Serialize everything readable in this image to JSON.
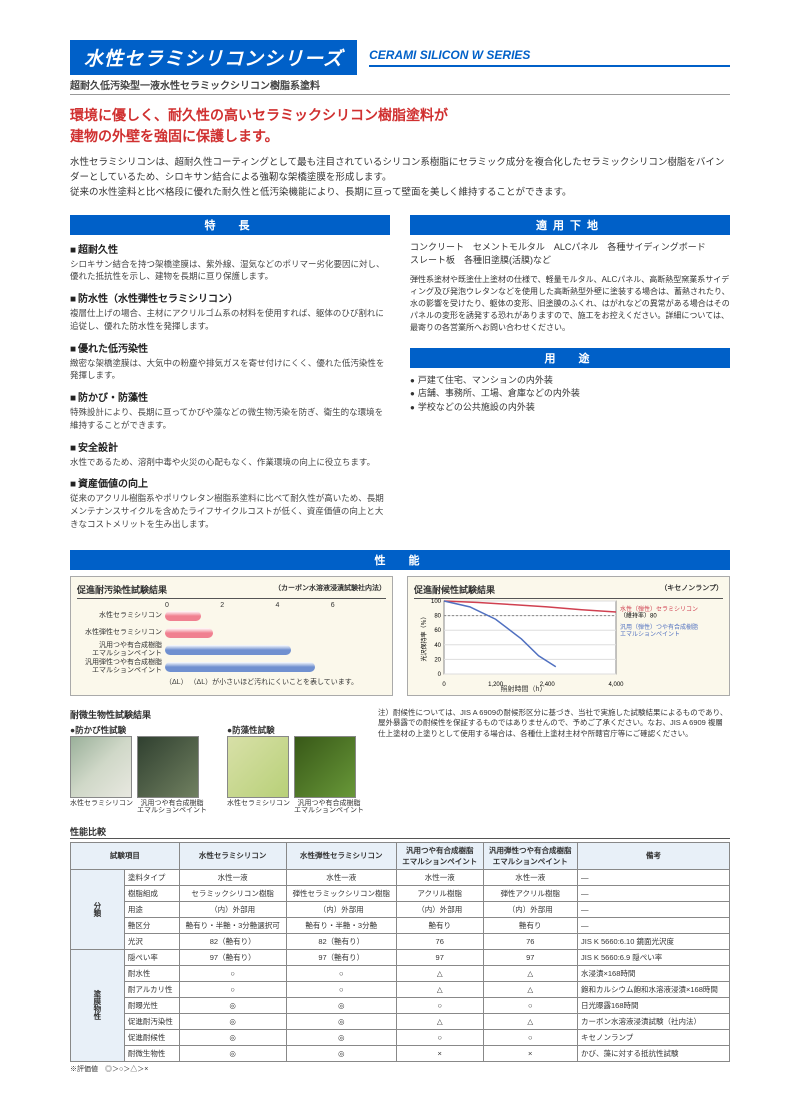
{
  "header": {
    "mainTitle": "水性セラミシリコンシリーズ",
    "engTitle": "CERAMI SILICON W SERIES",
    "subtitle": "超耐久低汚染型一液水性セラミックシリコン樹脂系塗料"
  },
  "headline": {
    "line1": "環境に優しく、耐久性の高いセラミックシリコン樹脂塗料が",
    "line2": "建物の外壁を強固に保護します。"
  },
  "intro": "水性セラミシリコンは、超耐久性コーティングとして最も注目されているシリコン系樹脂にセラミック成分を複合化したセラミックシリコン樹脂をバインダーとしているため、シロキサン結合による強靭な架橋塗膜を形成します。\n従来の水性塗料と比べ格段に優れた耐久性と低汚染機能により、長期に亘って壁面を美しく維持することができます。",
  "sections": {
    "features": "特　長",
    "substrate": "適用下地",
    "uses": "用　途",
    "performance": "性　能"
  },
  "features": [
    {
      "title": "超耐久性",
      "body": "シロキサン結合を持つ架橋塗膜は、紫外線、湿気などのポリマー劣化要因に対し、優れた抵抗性を示し、建物を長期に亘り保護します。"
    },
    {
      "title": "防水性（水性弾性セラミシリコン）",
      "body": "複層仕上げの場合、主材にアクリルゴム系の材料を使用すれば、躯体のひび割れに追従し、優れた防水性を発揮します。"
    },
    {
      "title": "優れた低汚染性",
      "body": "緻密な架橋塗膜は、大気中の粉塵や排気ガスを寄せ付けにくく、優れた低汚染性を発揮します。"
    },
    {
      "title": "防かび・防藻性",
      "body": "特殊設計により、長期に亘ってかびや藻などの微生物汚染を防ぎ、衛生的な環境を維持することができます。"
    },
    {
      "title": "安全設計",
      "body": "水性であるため、溶剤中毒や火災の心配もなく、作業環境の向上に役立ちます。"
    },
    {
      "title": "資産価値の向上",
      "body": "従来のアクリル樹脂系やポリウレタン樹脂系塗料に比べて耐久性が高いため、長期メンテナンスサイクルを含めたライフサイクルコストが低く、資産価値の向上と大きなコストメリットを生み出します。"
    }
  ],
  "substrate": {
    "line1": "コンクリート　セメントモルタル　ALCパネル　各種サイディングボード",
    "line2": "スレート板　各種旧塗膜(活膜)など",
    "note": "弾性系塗材や既塗仕上塗材の仕様で、軽量モルタル、ALCパネル、高断熱型窯業系サイディング及び発泡ウレタンなどを使用した高断熱型外壁に塗装する場合は、蓄熱されたり、水の影響を受けたり、躯体の変形、旧塗膜のふくれ、はがれなどの異常がある場合はそのパネルの変形を誘発する恐れがありますので、施工をお控えください。詳細については、最寄りの各営業所へお問い合わせください。"
  },
  "uses": [
    "戸建て住宅、マンションの内外装",
    "店舗、事務所、工場、倉庫などの内外装",
    "学校などの公共施設の内外装"
  ],
  "charts": {
    "pollution": {
      "title": "促進耐汚染性試験結果",
      "note": "（カーボン水溶液浸漬試験社内法）",
      "xlabel": "（ΔL）",
      "footnote": "（ΔL）が小さいほど汚れにくいことを表しています。",
      "bars": [
        {
          "label": "水性セラミシリコン",
          "value": 1.2,
          "color": "#f08090"
        },
        {
          "label": "水性弾性セラミシリコン",
          "value": 1.6,
          "color": "#f08090"
        },
        {
          "label": "汎用つや有合成樹脂\nエマルションペイント",
          "value": 4.2,
          "color": "#7090d0"
        },
        {
          "label": "汎用弾性つや有合成樹脂\nエマルションペイント",
          "value": 5.0,
          "color": "#7090d0"
        }
      ],
      "xmax": 6,
      "bg": "#fbf8eb"
    },
    "weather": {
      "title": "促進耐候性試験結果",
      "note": "（キセノンランプ）",
      "ylabel": "光沢保持率（％）",
      "xlabel": "照射時間（h）",
      "ymax": 100,
      "xmax": 4000,
      "series": [
        {
          "label": "水性（弾性）セラミシリコン",
          "color": "#d04050",
          "points": [
            [
              0,
              100
            ],
            [
              800,
              98
            ],
            [
              1600,
              95
            ],
            [
              2400,
              92
            ],
            [
              3200,
              88
            ],
            [
              4000,
              85
            ]
          ]
        },
        {
          "label": "汎用（弾性）つや有合成樹脂\nエマルションペイント",
          "color": "#5070c0",
          "points": [
            [
              0,
              100
            ],
            [
              600,
              92
            ],
            [
              1200,
              75
            ],
            [
              1800,
              48
            ],
            [
              2200,
              25
            ],
            [
              2600,
              10
            ]
          ]
        }
      ],
      "dashed_label": "（維持率）80",
      "bg": "#fbf8eb"
    }
  },
  "bio": {
    "header": "耐微生物性試験結果",
    "mold": "防かび性試験",
    "algae": "防藻性試験",
    "imgs": [
      {
        "cap": "水性セラミシリコン",
        "bg": "linear-gradient(135deg,#9ab09a,#d0d8c8,#e8e8e0)"
      },
      {
        "cap": "汎用つや有合成樹脂\nエマルションペイント",
        "bg": "linear-gradient(135deg,#304030,#506048,#708060)"
      },
      {
        "cap": "水性セラミシリコン",
        "bg": "linear-gradient(135deg,#d8e0a8,#c8d890,#b8d078)"
      },
      {
        "cap": "汎用つや有合成樹脂\nエマルションペイント",
        "bg": "linear-gradient(135deg,#385818,#507828,#689838)"
      }
    ],
    "note": "注）耐候性については、JIS A 6909の耐候形区分に基づき、当社で実施した試験結果によるものであり、屋外暴露での耐候性を保証するものではありませんので、予めご了承ください。なお、JIS A 6909 複層仕上塗材の上塗りとして使用する場合は、各種仕上塗材主材や所轄官庁等にご確認ください。"
  },
  "compare": {
    "title": "性能比較",
    "columns": [
      "試験項目",
      "水性セラミシリコン",
      "水性弾性セラミシリコン",
      "汎用つや有合成樹脂\nエマルションペイント",
      "汎用弾性つや有合成樹脂\nエマルションペイント",
      "備考"
    ],
    "groups": [
      {
        "cat": "分類",
        "rows": [
          [
            "塗料タイプ",
            "水性一液",
            "水性一液",
            "水性一液",
            "水性一液",
            "—"
          ],
          [
            "樹脂組成",
            "セラミックシリコン樹脂",
            "弾性セラミックシリコン樹脂",
            "アクリル樹脂",
            "弾性アクリル樹脂",
            "—"
          ],
          [
            "用途",
            "（内）外部用",
            "（内）外部用",
            "（内）外部用",
            "（内）外部用",
            "—"
          ],
          [
            "艶区分",
            "艶有り・半艶・3分艶選択可",
            "艶有り・半艶・3分艶",
            "艶有り",
            "艶有り",
            "—"
          ],
          [
            "光沢",
            "82（艶有り）",
            "82（艶有り）",
            "76",
            "76",
            "JIS K 5660:6.10 鏡面光沢度"
          ]
        ]
      },
      {
        "cat": "塗膜物性",
        "rows": [
          [
            "隠ぺい率",
            "97（艶有り）",
            "97（艶有り）",
            "97",
            "97",
            "JIS K 5660:6.9 隠ぺい率"
          ],
          [
            "耐水性",
            "○",
            "○",
            "△",
            "△",
            "水浸漬×168時間"
          ],
          [
            "耐アルカリ性",
            "○",
            "○",
            "△",
            "△",
            "飽和カルシウム飽和水溶液浸漬×168時間"
          ],
          [
            "耐曝光性",
            "◎",
            "◎",
            "○",
            "○",
            "日光曝露168時間"
          ],
          [
            "促進耐汚染性",
            "◎",
            "◎",
            "△",
            "△",
            "カーボン水溶液浸漬試験（社内法）"
          ],
          [
            "促進耐候性",
            "◎",
            "◎",
            "○",
            "○",
            "キセノンランプ"
          ],
          [
            "耐微生物性",
            "◎",
            "◎",
            "×",
            "×",
            "かび、藻に対する抵抗性試験"
          ]
        ]
      }
    ],
    "footnote": "※評価値　◎＞○＞△＞×"
  }
}
